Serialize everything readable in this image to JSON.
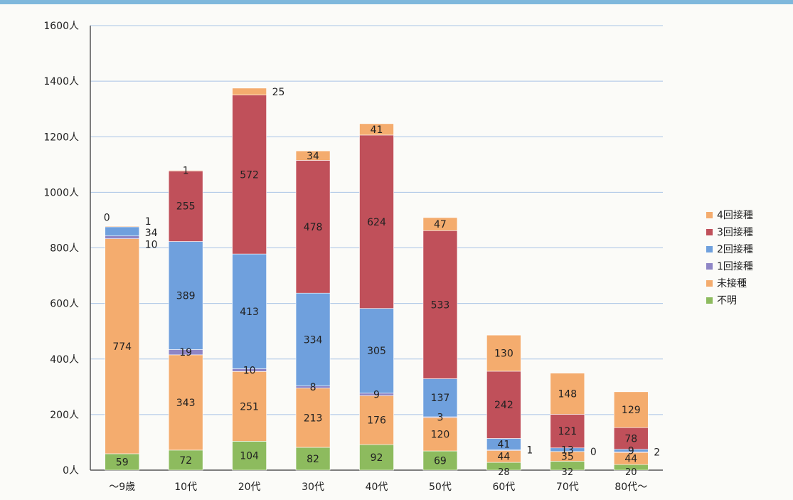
{
  "chart_data": {
    "type": "bar",
    "stacked": true,
    "title": "",
    "xlabel": "",
    "ylabel": "",
    "ylim": [
      0,
      1600
    ],
    "y_ticks": [
      "0人",
      "200人",
      "400人",
      "600人",
      "800人",
      "1000人",
      "1200人",
      "1400人",
      "1600人"
    ],
    "y_tick_values": [
      0,
      200,
      400,
      600,
      800,
      1000,
      1200,
      1400,
      1600
    ],
    "grid": true,
    "legend_position": "right",
    "categories": [
      "〜9歳",
      "10代",
      "20代",
      "30代",
      "40代",
      "50代",
      "60代",
      "70代",
      "80代〜"
    ],
    "series": [
      {
        "name": "不明",
        "color": "#8dbb5e",
        "values": [
          59,
          72,
          104,
          82,
          92,
          69,
          28,
          32,
          20
        ]
      },
      {
        "name": "未接種",
        "color": "#f4ac6e",
        "values": [
          774,
          343,
          251,
          213,
          176,
          120,
          44,
          35,
          44
        ]
      },
      {
        "name": "1回接種",
        "color": "#8f86c6",
        "values": [
          10,
          19,
          10,
          8,
          9,
          3,
          1,
          0,
          2
        ]
      },
      {
        "name": "2回接種",
        "color": "#6fa0dd",
        "values": [
          34,
          389,
          413,
          334,
          305,
          137,
          41,
          13,
          9
        ]
      },
      {
        "name": "3回接種",
        "color": "#c0505a",
        "values": [
          0,
          255,
          572,
          478,
          624,
          533,
          242,
          121,
          78
        ]
      },
      {
        "name": "4回接種",
        "color": "#f4ac6e",
        "values": [
          1,
          1,
          25,
          34,
          41,
          47,
          130,
          148,
          129
        ]
      }
    ],
    "legend_order": [
      "4回接種",
      "3回接種",
      "2回接種",
      "1回接種",
      "未接種",
      "不明"
    ]
  }
}
